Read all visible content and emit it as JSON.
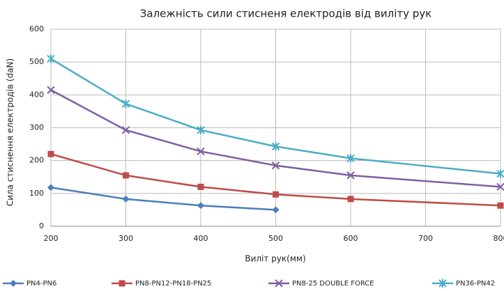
{
  "chart_data": {
    "type": "line",
    "title": "Залежність сили стисненя електродів  від виліту рук",
    "x_label": "Виліт рук(мм)",
    "y_label": "Сила стиснення електродів (daN)",
    "x": [
      200,
      300,
      400,
      500,
      600,
      800
    ],
    "series": [
      {
        "name": "PN4-PN6",
        "color": "#4a7ebb",
        "marker": "diamond",
        "values": [
          118,
          83,
          63,
          50,
          null,
          null
        ]
      },
      {
        "name": "PN8-PN12-PN18-PN25",
        "color": "#be4b48",
        "marker": "square",
        "values": [
          220,
          155,
          120,
          97,
          83,
          63
        ]
      },
      {
        "name": "PN8-25 DOUBLE FORCE",
        "color": "#7d60a0",
        "marker": "x",
        "values": [
          415,
          293,
          228,
          185,
          155,
          120
        ]
      },
      {
        "name": "PN36-PN42",
        "color": "#4bacc6",
        "marker": "star",
        "values": [
          510,
          373,
          293,
          243,
          207,
          160
        ]
      }
    ],
    "xlim": [
      200,
      800
    ],
    "xticks": [
      200,
      300,
      400,
      500,
      600,
      700,
      800
    ],
    "ylim": [
      0,
      600
    ],
    "yticks": [
      0,
      100,
      200,
      300,
      400,
      500,
      600
    ],
    "grid": true,
    "legend": "bottom"
  }
}
